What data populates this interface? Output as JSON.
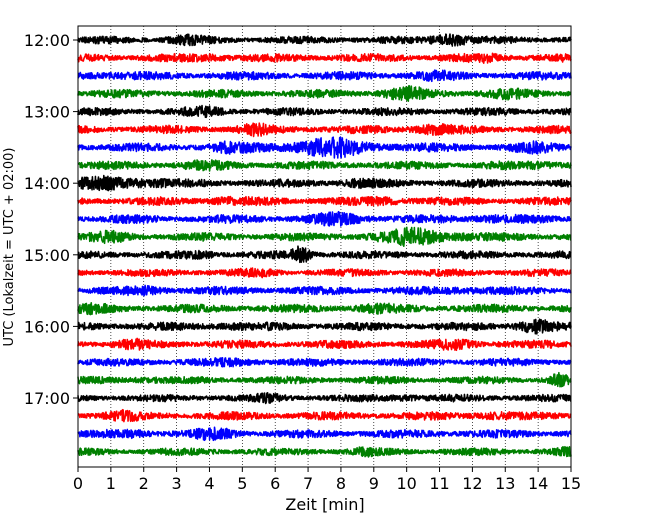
{
  "chart_data": {
    "type": "line",
    "xlabel": "Zeit  [min]",
    "ylabel": "UTC (Lokalzeit = UTC + 02:00)",
    "xlim": [
      0,
      15
    ],
    "x_ticks": [
      "0",
      "1",
      "2",
      "3",
      "4",
      "5",
      "6",
      "7",
      "8",
      "9",
      "10",
      "11",
      "12",
      "13",
      "14",
      "15"
    ],
    "y_ticks": [
      "12:00",
      "13:00",
      "14:00",
      "15:00",
      "16:00",
      "17:00"
    ],
    "grid": "x-dotted",
    "trace_colors": [
      "#000000",
      "#ff0000",
      "#0000ff",
      "#008000"
    ],
    "traces": [
      {
        "start": "12:00",
        "amp": 0.9,
        "events": [
          [
            11.3,
            3.0,
            0.5
          ],
          [
            3.2,
            1.6,
            0.6
          ]
        ]
      },
      {
        "start": "12:15",
        "amp": 1.0,
        "events": [
          [
            4.1,
            1.6,
            0.5
          ],
          [
            12.6,
            1.5,
            0.5
          ]
        ]
      },
      {
        "start": "12:30",
        "amp": 1.0,
        "events": [
          [
            0.6,
            1.5,
            0.6
          ],
          [
            10.9,
            1.5,
            0.6
          ]
        ]
      },
      {
        "start": "12:45",
        "amp": 1.0,
        "events": [
          [
            9.9,
            2.0,
            0.7
          ],
          [
            13.0,
            1.5,
            0.6
          ]
        ]
      },
      {
        "start": "13:00",
        "amp": 0.95,
        "events": [
          [
            3.9,
            1.6,
            0.6
          ]
        ]
      },
      {
        "start": "13:15",
        "amp": 1.0,
        "events": [
          [
            5.3,
            1.8,
            0.5
          ],
          [
            10.7,
            2.0,
            0.6
          ]
        ]
      },
      {
        "start": "13:30",
        "amp": 1.05,
        "events": [
          [
            7.5,
            2.6,
            1.6
          ],
          [
            4.6,
            1.6,
            0.5
          ],
          [
            13.8,
            1.6,
            0.6
          ]
        ]
      },
      {
        "start": "13:45",
        "amp": 1.0,
        "events": [
          [
            3.7,
            1.5,
            0.6
          ],
          [
            14.2,
            1.6,
            0.6
          ]
        ]
      },
      {
        "start": "14:00",
        "amp": 1.0,
        "events": [
          [
            1.3,
            2.4,
            1.1
          ],
          [
            8.5,
            1.6,
            0.5
          ]
        ]
      },
      {
        "start": "14:15",
        "amp": 1.0,
        "events": [
          [
            4.4,
            1.6,
            0.6
          ],
          [
            9.5,
            1.6,
            0.6
          ]
        ]
      },
      {
        "start": "14:30",
        "amp": 1.05,
        "events": [
          [
            8.0,
            1.8,
            0.8
          ],
          [
            12.5,
            1.5,
            0.6
          ]
        ]
      },
      {
        "start": "14:45",
        "amp": 1.0,
        "events": [
          [
            1.0,
            1.6,
            0.6
          ],
          [
            10.5,
            2.6,
            1.2
          ]
        ]
      },
      {
        "start": "15:00",
        "amp": 0.95,
        "events": [
          [
            6.8,
            3.2,
            0.3
          ],
          [
            3.8,
            1.5,
            0.4
          ]
        ]
      },
      {
        "start": "15:15",
        "amp": 0.9,
        "events": [
          [
            5.5,
            1.4,
            0.5
          ]
        ]
      },
      {
        "start": "15:30",
        "amp": 1.0,
        "events": [
          [
            2.2,
            1.6,
            0.6
          ],
          [
            11.8,
            1.6,
            0.6
          ]
        ]
      },
      {
        "start": "15:45",
        "amp": 1.0,
        "events": [
          [
            0.4,
            1.5,
            0.5
          ],
          [
            9.0,
            1.5,
            0.6
          ]
        ]
      },
      {
        "start": "16:00",
        "amp": 1.0,
        "events": [
          [
            13.8,
            2.6,
            0.5
          ],
          [
            4.6,
            1.5,
            0.5
          ]
        ]
      },
      {
        "start": "16:15",
        "amp": 1.0,
        "events": [
          [
            11.6,
            1.8,
            0.6
          ],
          [
            1.6,
            1.5,
            0.5
          ]
        ]
      },
      {
        "start": "16:30",
        "amp": 0.95,
        "events": [
          [
            4.9,
            1.4,
            0.6
          ]
        ]
      },
      {
        "start": "16:45",
        "amp": 0.9,
        "events": [
          [
            14.6,
            2.4,
            0.25
          ],
          [
            2.0,
            1.4,
            0.5
          ]
        ]
      },
      {
        "start": "17:00",
        "amp": 0.9,
        "events": [
          [
            9.9,
            1.8,
            0.4
          ],
          [
            5.8,
            1.5,
            0.4
          ]
        ]
      },
      {
        "start": "17:15",
        "amp": 1.0,
        "events": [
          [
            1.3,
            1.6,
            0.5
          ],
          [
            12.5,
            1.6,
            0.5
          ]
        ]
      },
      {
        "start": "17:30",
        "amp": 1.0,
        "events": [
          [
            4.2,
            1.8,
            0.6
          ],
          [
            1.8,
            1.5,
            0.5
          ]
        ]
      },
      {
        "start": "17:45",
        "amp": 0.9,
        "events": [
          [
            8.7,
            1.5,
            0.3
          ],
          [
            14.8,
            1.4,
            0.3
          ]
        ]
      }
    ]
  }
}
